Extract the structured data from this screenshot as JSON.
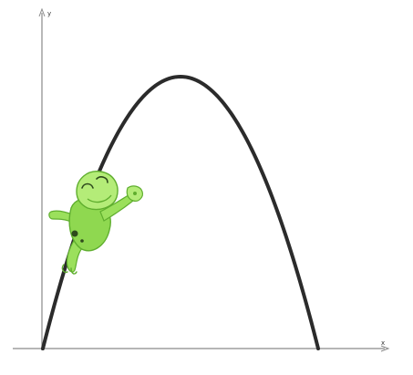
{
  "axes": {
    "x_label": "x",
    "y_label": "y"
  },
  "colors": {
    "axis": "#8a8a8a",
    "curve": "#2b2b2b",
    "frog_light": "#b4ec78",
    "frog_mid": "#8fd850",
    "frog_dark": "#5fae2e",
    "frog_spots": "#2e4a1c"
  },
  "icons": {
    "character": "jumping-frog-icon"
  }
}
